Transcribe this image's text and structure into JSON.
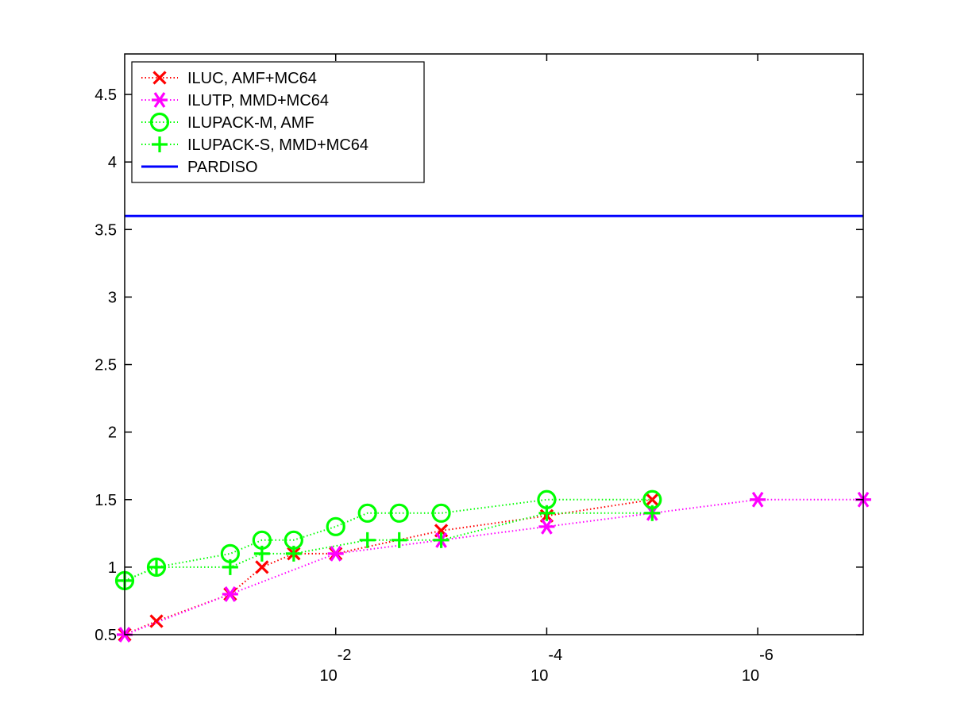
{
  "chart_data": {
    "type": "line",
    "title": "",
    "xlabel": "",
    "ylabel": "",
    "x_scale": "log-reversed",
    "xlim": [
      1,
      1e-07
    ],
    "ylim": [
      0.5,
      4.8
    ],
    "grid": false,
    "legend_placement": "top-left",
    "x_ticks": [
      {
        "value": 0.01,
        "base": "10",
        "exponent": "-2"
      },
      {
        "value": 0.0001,
        "base": "10",
        "exponent": "-4"
      },
      {
        "value": 1e-06,
        "base": "10",
        "exponent": "-6"
      }
    ],
    "y_ticks": [
      {
        "value": 0.5,
        "label": "0.5"
      },
      {
        "value": 1,
        "label": "1"
      },
      {
        "value": 1.5,
        "label": "1.5"
      },
      {
        "value": 2,
        "label": "2"
      },
      {
        "value": 2.5,
        "label": "2.5"
      },
      {
        "value": 3,
        "label": "3"
      },
      {
        "value": 3.5,
        "label": "3.5"
      },
      {
        "value": 4,
        "label": "4"
      },
      {
        "value": 4.5,
        "label": "4.5"
      }
    ],
    "series": [
      {
        "name": "ILUC, AMF+MC64",
        "color": "#ff0000",
        "marker": "x",
        "line": "dotted",
        "x": [
          1,
          0.5,
          0.1,
          0.05,
          0.025,
          0.01,
          0.001,
          0.0001,
          1e-05
        ],
        "y": [
          0.5,
          0.6,
          0.8,
          1.0,
          1.1,
          1.1,
          1.27,
          1.38,
          1.5
        ]
      },
      {
        "name": "ILUTP, MMD+MC64",
        "color": "#ff00ff",
        "marker": "asterisk",
        "line": "dotted",
        "x": [
          1,
          0.1,
          0.01,
          0.001,
          0.0001,
          1e-05,
          1e-06,
          1e-07
        ],
        "y": [
          0.5,
          0.8,
          1.1,
          1.2,
          1.3,
          1.4,
          1.5,
          1.5
        ]
      },
      {
        "name": "ILUPACK-M, AMF",
        "color": "#00ff00",
        "marker": "o",
        "line": "dotted",
        "x": [
          1,
          0.5,
          0.1,
          0.05,
          0.025,
          0.01,
          0.005,
          0.0025,
          0.001,
          0.0001,
          1e-05
        ],
        "y": [
          0.9,
          1.0,
          1.1,
          1.2,
          1.2,
          1.3,
          1.4,
          1.4,
          1.4,
          1.5,
          1.5
        ]
      },
      {
        "name": "ILUPACK-S, MMD+MC64",
        "color": "#00ff00",
        "marker": "+",
        "line": "dotted",
        "x": [
          1,
          0.5,
          0.1,
          0.05,
          0.025,
          0.005,
          0.0025,
          0.001,
          0.0001,
          1e-05
        ],
        "y": [
          0.9,
          1.0,
          1.0,
          1.1,
          1.1,
          1.2,
          1.2,
          1.2,
          1.4,
          1.4
        ]
      },
      {
        "name": "PARDISO",
        "color": "#0000ff",
        "marker": "none",
        "line": "solid",
        "x": [
          1,
          1e-07
        ],
        "y": [
          3.6,
          3.6
        ]
      }
    ]
  }
}
